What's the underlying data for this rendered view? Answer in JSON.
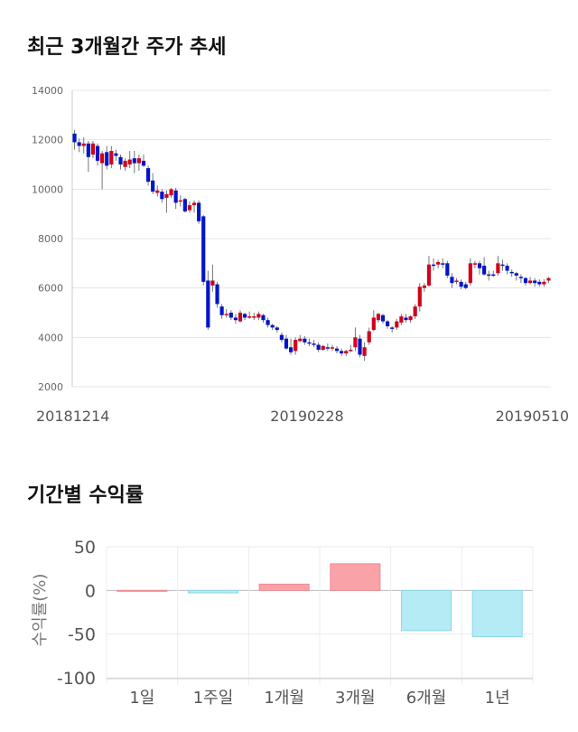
{
  "titles": {
    "price": "최근 3개월간 주가 추세",
    "returns": "기간별 수익률"
  },
  "colors": {
    "up": "#d0021b",
    "down": "#0015c8",
    "grid": "#e4e4e4",
    "positive_bar": "#f9a3a8",
    "negative_bar": "#b4ebf5",
    "negative_bar_stroke": "#8fd6e6"
  },
  "chart_data": [
    {
      "type": "candlestick",
      "title": "최근 3개월간 주가 추세",
      "ylim": [
        2000,
        14000
      ],
      "yticks": [
        2000,
        4000,
        6000,
        8000,
        10000,
        12000,
        14000
      ],
      "xticks": [
        "20181214",
        "20190228",
        "20190510"
      ],
      "grid": true,
      "candles": [
        [
          12250,
          11900,
          12400,
          11600
        ],
        [
          11900,
          11750,
          12050,
          11500
        ],
        [
          11750,
          11850,
          12100,
          11450
        ],
        [
          11850,
          11300,
          11950,
          10700
        ],
        [
          11400,
          11850,
          11950,
          11250
        ],
        [
          11750,
          11150,
          11850,
          10950
        ],
        [
          11050,
          11450,
          11550,
          10000
        ],
        [
          11500,
          10950,
          11750,
          10800
        ],
        [
          11000,
          11550,
          11750,
          10850
        ],
        [
          11450,
          11350,
          11600,
          11150
        ],
        [
          11300,
          11000,
          11400,
          10800
        ],
        [
          10900,
          11150,
          11250,
          10750
        ],
        [
          11000,
          11200,
          11550,
          10850
        ],
        [
          11250,
          11050,
          11550,
          10650
        ],
        [
          11050,
          11250,
          11400,
          10750
        ],
        [
          11150,
          10950,
          11400,
          10900
        ],
        [
          10850,
          10300,
          10950,
          10150
        ],
        [
          10350,
          9900,
          10650,
          9800
        ],
        [
          9850,
          9950,
          10150,
          9700
        ],
        [
          9900,
          9600,
          10000,
          9450
        ],
        [
          9650,
          9800,
          9950,
          9050
        ],
        [
          9750,
          10000,
          10050,
          9650
        ],
        [
          9950,
          9450,
          10050,
          9200
        ],
        [
          9500,
          9550,
          9750,
          9300
        ],
        [
          9600,
          9100,
          9650,
          9050
        ],
        [
          9150,
          9350,
          9500,
          9050
        ],
        [
          9350,
          9450,
          9550,
          9050
        ],
        [
          9450,
          8700,
          9550,
          8600
        ],
        [
          8900,
          6250,
          8950,
          6100
        ],
        [
          6300,
          4400,
          6700,
          4300
        ],
        [
          6100,
          6300,
          6950,
          5850
        ],
        [
          6150,
          5350,
          6250,
          5200
        ],
        [
          5250,
          4900,
          5350,
          4750
        ],
        [
          4900,
          4950,
          5150,
          4800
        ],
        [
          5000,
          4800,
          5100,
          4700
        ],
        [
          4800,
          4700,
          4950,
          4550
        ],
        [
          4650,
          5000,
          5100,
          4600
        ],
        [
          4950,
          4800,
          5000,
          4700
        ],
        [
          4850,
          4850,
          5050,
          4750
        ],
        [
          4800,
          4850,
          5000,
          4700
        ],
        [
          4800,
          4950,
          5050,
          4700
        ],
        [
          4900,
          4700,
          4950,
          4600
        ],
        [
          4700,
          4500,
          4800,
          4400
        ],
        [
          4500,
          4400,
          4550,
          4300
        ],
        [
          4400,
          4300,
          4450,
          4200
        ],
        [
          4100,
          3900,
          4200,
          3800
        ],
        [
          3950,
          3550,
          4100,
          3500
        ],
        [
          3600,
          3400,
          3950,
          3300
        ],
        [
          3450,
          3900,
          4000,
          3300
        ],
        [
          3850,
          3950,
          4100,
          3800
        ],
        [
          3950,
          3800,
          4050,
          3700
        ],
        [
          3800,
          3750,
          3950,
          3650
        ],
        [
          3750,
          3700,
          3900,
          3600
        ],
        [
          3700,
          3500,
          3800,
          3400
        ],
        [
          3500,
          3650,
          3700,
          3450
        ],
        [
          3600,
          3550,
          3750,
          3450
        ],
        [
          3550,
          3600,
          3700,
          3450
        ],
        [
          3550,
          3450,
          3650,
          3350
        ],
        [
          3450,
          3350,
          3550,
          3250
        ],
        [
          3350,
          3450,
          3500,
          3250
        ],
        [
          3450,
          3500,
          3700,
          3400
        ],
        [
          3600,
          4000,
          4400,
          3450
        ],
        [
          3950,
          3300,
          4100,
          3200
        ],
        [
          3250,
          3600,
          3800,
          3050
        ],
        [
          3800,
          4250,
          4400,
          3700
        ],
        [
          4300,
          4800,
          5100,
          4250
        ],
        [
          4700,
          4950,
          5000,
          4600
        ],
        [
          4900,
          4650,
          4950,
          4550
        ],
        [
          4650,
          4450,
          4700,
          4350
        ],
        [
          4400,
          4350,
          4450,
          4200
        ],
        [
          4400,
          4650,
          4750,
          4300
        ],
        [
          4600,
          4850,
          4950,
          4500
        ],
        [
          4800,
          4700,
          4950,
          4600
        ],
        [
          4700,
          4850,
          4900,
          4600
        ],
        [
          4850,
          5250,
          5350,
          4750
        ],
        [
          5250,
          6050,
          6200,
          5050
        ],
        [
          6000,
          6100,
          6200,
          5850
        ],
        [
          6100,
          6950,
          7300,
          6050
        ],
        [
          6950,
          6900,
          7200,
          6700
        ],
        [
          6950,
          7050,
          7150,
          6800
        ],
        [
          7000,
          6950,
          7200,
          6800
        ],
        [
          7000,
          6500,
          7100,
          6400
        ],
        [
          6450,
          6200,
          6600,
          6000
        ],
        [
          6250,
          6300,
          6400,
          6150
        ],
        [
          6250,
          6050,
          6350,
          5950
        ],
        [
          6150,
          6000,
          6250,
          5950
        ],
        [
          6200,
          7000,
          7200,
          6100
        ],
        [
          7000,
          7000,
          7100,
          6800
        ],
        [
          7000,
          6800,
          7100,
          6550
        ],
        [
          6900,
          6550,
          7250,
          6500
        ],
        [
          6550,
          6500,
          6700,
          6300
        ],
        [
          6550,
          6500,
          6700,
          6450
        ],
        [
          6600,
          7000,
          7300,
          6500
        ],
        [
          6950,
          6900,
          7150,
          6700
        ],
        [
          6900,
          6700,
          7000,
          6550
        ],
        [
          6650,
          6600,
          6750,
          6450
        ],
        [
          6600,
          6500,
          6650,
          6300
        ],
        [
          6450,
          6400,
          6550,
          6200
        ],
        [
          6400,
          6200,
          6450,
          6100
        ],
        [
          6200,
          6300,
          6450,
          6150
        ],
        [
          6300,
          6200,
          6400,
          6050
        ],
        [
          6250,
          6150,
          6350,
          6050
        ],
        [
          6150,
          6250,
          6350,
          6050
        ],
        [
          6300,
          6400,
          6450,
          6200
        ]
      ]
    },
    {
      "type": "bar",
      "title": "기간별 수익률",
      "categories": [
        "1일",
        "1주일",
        "1개월",
        "3개월",
        "6개월",
        "1년"
      ],
      "values": [
        0,
        -2.8,
        7.2,
        30.5,
        -46.0,
        -53.0
      ],
      "ylabel": "수익률(%)",
      "ylim": [
        -100,
        50
      ],
      "yticks": [
        50,
        0,
        -50,
        -100
      ],
      "grid": true
    }
  ]
}
